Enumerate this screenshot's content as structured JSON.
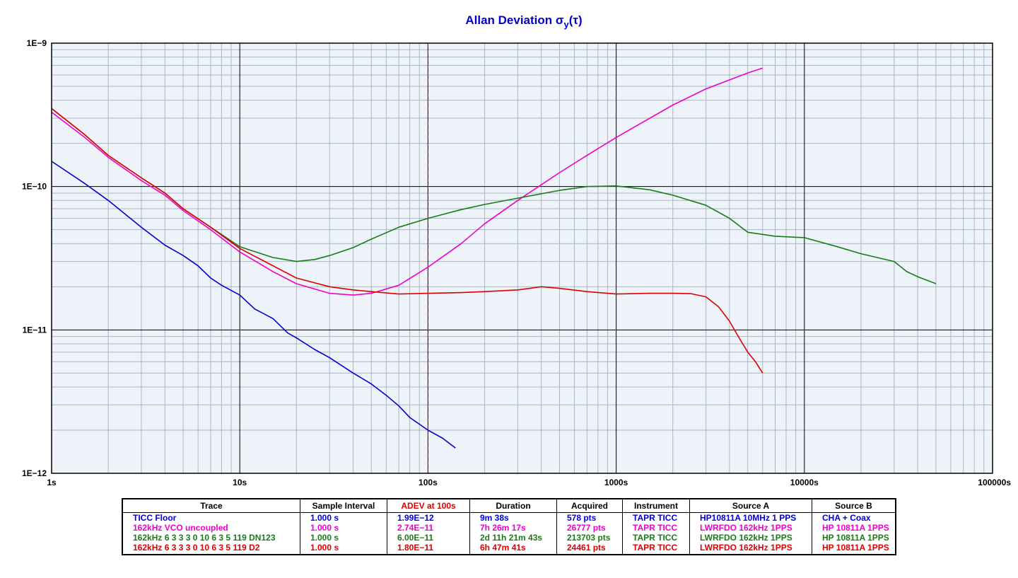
{
  "chart_data": {
    "type": "line",
    "title_main": "Allan Deviation σ",
    "title_sub": "y",
    "title_tail": "(τ)",
    "x_scale": "log",
    "y_scale": "log",
    "xlim": [
      1,
      100000
    ],
    "ylim": [
      1e-12,
      1e-09
    ],
    "grid": true,
    "x_ticks": [
      {
        "value": 1,
        "label": "1s"
      },
      {
        "value": 10,
        "label": "10s"
      },
      {
        "value": 100,
        "label": "100s"
      },
      {
        "value": 1000,
        "label": "1000s"
      },
      {
        "value": 10000,
        "label": "10000s"
      },
      {
        "value": 100000,
        "label": "100000s"
      }
    ],
    "y_ticks": [
      {
        "value": 1e-09,
        "label": "1E−9"
      },
      {
        "value": 1e-10,
        "label": "1E−10"
      },
      {
        "value": 1e-11,
        "label": "1E−11"
      },
      {
        "value": 1e-12,
        "label": "1E−12"
      }
    ],
    "marker_tau": 100,
    "marker_color": "#dd0000",
    "series": [
      {
        "color": "#0000cc",
        "x": [
          1,
          1.5,
          2,
          3,
          4,
          5,
          6,
          7,
          8,
          10,
          12,
          15,
          18,
          20,
          25,
          30,
          40,
          50,
          60,
          70,
          80,
          100,
          120,
          140
        ],
        "y": [
          1.5e-10,
          1.05e-10,
          8e-11,
          5.2e-11,
          3.9e-11,
          3.3e-11,
          2.8e-11,
          2.3e-11,
          2.05e-11,
          1.75e-11,
          1.4e-11,
          1.2e-11,
          9.5e-12,
          8.8e-12,
          7.3e-12,
          6.4e-12,
          5e-12,
          4.2e-12,
          3.5e-12,
          2.95e-12,
          2.45e-12,
          2e-12,
          1.75e-12,
          1.5e-12
        ]
      },
      {
        "color": "#ee00cc",
        "x": [
          1,
          1.5,
          2,
          3,
          4,
          5,
          7,
          10,
          15,
          20,
          30,
          40,
          50,
          70,
          100,
          150,
          200,
          300,
          500,
          700,
          1000,
          2000,
          3000,
          5000,
          6000
        ],
        "y": [
          3.3e-10,
          2.2e-10,
          1.6e-10,
          1.1e-10,
          8.7e-11,
          6.8e-11,
          5e-11,
          3.5e-11,
          2.55e-11,
          2.1e-11,
          1.8e-11,
          1.75e-11,
          1.8e-11,
          2.05e-11,
          2.74e-11,
          4e-11,
          5.5e-11,
          8e-11,
          1.25e-10,
          1.65e-10,
          2.2e-10,
          3.7e-10,
          4.8e-10,
          6.2e-10,
          6.7e-10
        ]
      },
      {
        "color": "#1a7a1a",
        "x": [
          1,
          1.5,
          2,
          3,
          4,
          5,
          7,
          10,
          15,
          20,
          25,
          30,
          40,
          50,
          70,
          100,
          150,
          200,
          300,
          500,
          700,
          1000,
          1500,
          2000,
          3000,
          4000,
          5000,
          7000,
          10000,
          15000,
          20000,
          30000,
          35000,
          40000,
          50000
        ],
        "y": [
          3.5e-10,
          2.3e-10,
          1.65e-10,
          1.15e-10,
          9e-11,
          7e-11,
          5.2e-11,
          3.8e-11,
          3.2e-11,
          3e-11,
          3.1e-11,
          3.3e-11,
          3.75e-11,
          4.3e-11,
          5.2e-11,
          6e-11,
          6.9e-11,
          7.5e-11,
          8.3e-11,
          9.4e-11,
          1e-10,
          1.01e-10,
          9.5e-11,
          8.7e-11,
          7.4e-11,
          6e-11,
          4.8e-11,
          4.5e-11,
          4.4e-11,
          3.8e-11,
          3.4e-11,
          3e-11,
          2.55e-11,
          2.35e-11,
          2.1e-11
        ]
      },
      {
        "color": "#dd0000",
        "x": [
          1,
          1.5,
          2,
          3,
          4,
          5,
          7,
          10,
          15,
          20,
          30,
          40,
          50,
          70,
          100,
          150,
          200,
          300,
          400,
          500,
          700,
          1000,
          1500,
          2000,
          2500,
          3000,
          3500,
          4000,
          4500,
          5000,
          5500,
          6000
        ],
        "y": [
          3.5e-10,
          2.3e-10,
          1.65e-10,
          1.15e-10,
          9e-11,
          7e-11,
          5.2e-11,
          3.7e-11,
          2.8e-11,
          2.3e-11,
          2e-11,
          1.9e-11,
          1.85e-11,
          1.78e-11,
          1.8e-11,
          1.82e-11,
          1.85e-11,
          1.9e-11,
          2e-11,
          1.95e-11,
          1.85e-11,
          1.78e-11,
          1.8e-11,
          1.8e-11,
          1.79e-11,
          1.7e-11,
          1.45e-11,
          1.15e-11,
          8.8e-12,
          7e-12,
          6e-12,
          5e-12
        ]
      }
    ]
  },
  "legend": {
    "headers": [
      "Trace",
      "Sample Interval",
      "ADEV at 100s",
      "Duration",
      "Acquired",
      "Instrument",
      "Source A",
      "Source B"
    ],
    "rows": [
      {
        "color": "#0000cc",
        "cells": [
          "TICC Floor",
          "1.000 s",
          "1.99E−12",
          "9m 38s",
          "578 pts",
          "TAPR TICC",
          "HP10811A 10MHz 1 PPS",
          "CHA + Coax"
        ]
      },
      {
        "color": "#ee00cc",
        "cells": [
          "162kHz VCO uncoupled",
          "1.000 s",
          "2.74E−11",
          "7h 26m 17s",
          "26777 pts",
          "TAPR TICC",
          "LWRFDO 162kHz 1PPS",
          "HP 10811A 1PPS"
        ]
      },
      {
        "color": "#1a7a1a",
        "cells": [
          "162kHz 6 3 3 3 0 10 6 3  5 119 DN123",
          "1.000 s",
          "6.00E−11",
          "2d 11h 21m 43s",
          "213703 pts",
          "TAPR TICC",
          "LWRFDO 162kHz 1PPS",
          "HP 10811A 1PPS"
        ]
      },
      {
        "color": "#dd0000",
        "cells": [
          "162kHz 6 3 3 3 0 10 6 3  5 119 D2",
          "1.000 s",
          "1.80E−11",
          "6h 47m 41s",
          "24461 pts",
          "TAPR TICC",
          "LWRFDO 162kHz 1PPS",
          "HP 10811A 1PPS"
        ]
      }
    ]
  }
}
